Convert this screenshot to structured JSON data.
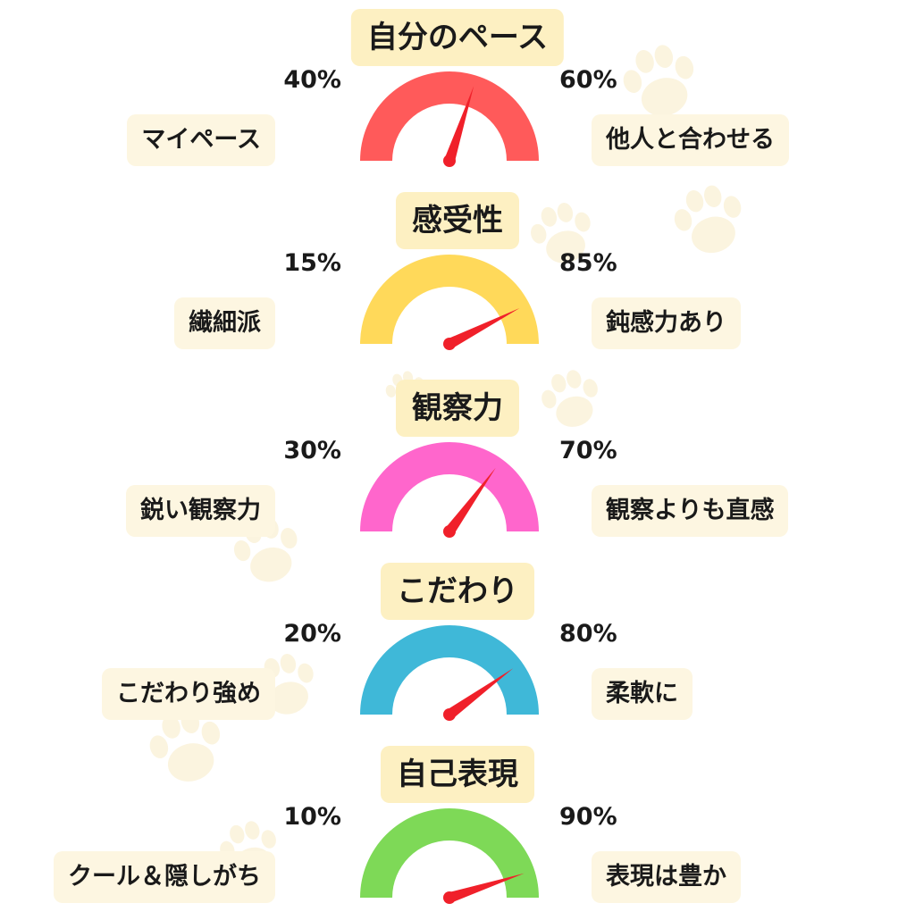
{
  "chart_data": [
    {
      "type": "gauge",
      "title": "自分のペース",
      "left": {
        "label": "マイペース",
        "percent": 40,
        "percent_label": "40%"
      },
      "right": {
        "label": "他人と合わせる",
        "percent": 60,
        "percent_label": "60%"
      },
      "color": "#ff5a5a"
    },
    {
      "type": "gauge",
      "title": "感受性",
      "left": {
        "label": "繊細派",
        "percent": 15,
        "percent_label": "15%"
      },
      "right": {
        "label": "鈍感力あり",
        "percent": 85,
        "percent_label": "85%"
      },
      "color": "#ffd95a"
    },
    {
      "type": "gauge",
      "title": "観察力",
      "left": {
        "label": "鋭い観察力",
        "percent": 30,
        "percent_label": "30%"
      },
      "right": {
        "label": "観察よりも直感",
        "percent": 70,
        "percent_label": "70%"
      },
      "color": "#ff66cc"
    },
    {
      "type": "gauge",
      "title": "こだわり",
      "left": {
        "label": "こだわり強め",
        "percent": 20,
        "percent_label": "20%"
      },
      "right": {
        "label": "柔軟に",
        "percent": 80,
        "percent_label": "80%"
      },
      "color": "#3fb8d8"
    },
    {
      "type": "gauge",
      "title": "自己表現",
      "left": {
        "label": "クール＆隠しがち",
        "percent": 10,
        "percent_label": "10%"
      },
      "right": {
        "label": "表現は豊か",
        "percent": 90,
        "percent_label": "90%"
      },
      "color": "#7ed957"
    }
  ],
  "colors": {
    "needle": "#f0202a",
    "title_bg": "#fdf0c2",
    "pill_bg": "#fdf6e1",
    "paw": "#fbf4df"
  },
  "icons": {
    "background": "paw-print-icon"
  }
}
